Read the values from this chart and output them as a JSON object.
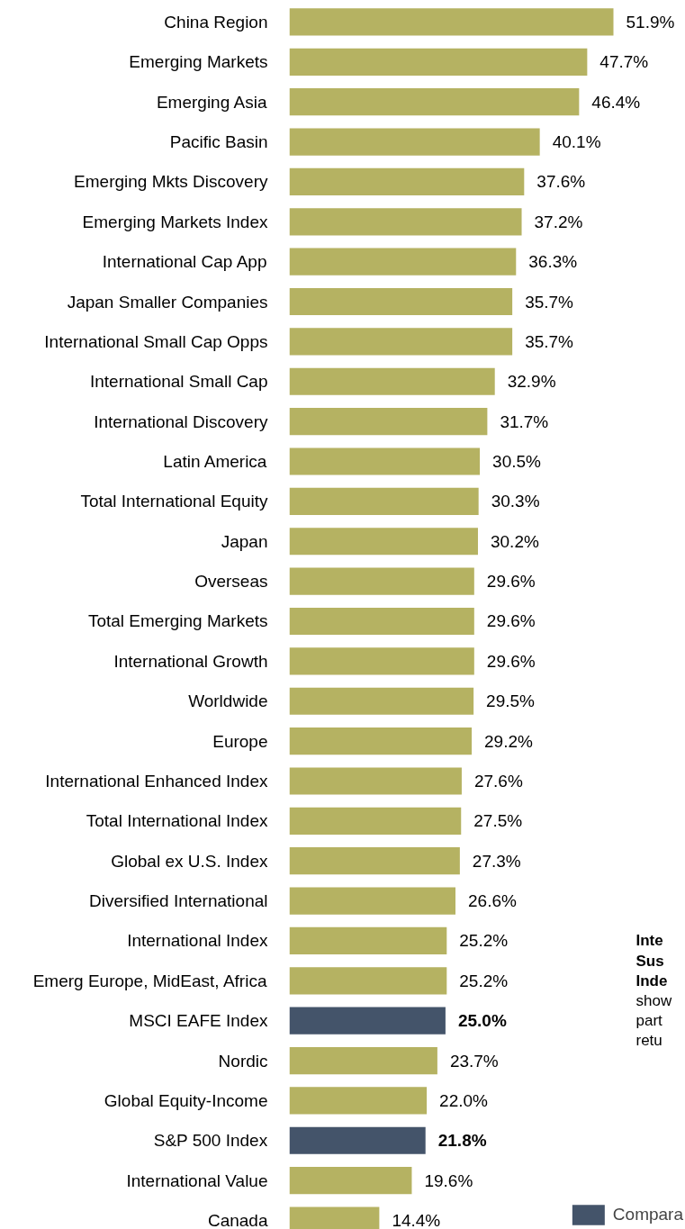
{
  "chart_data": {
    "type": "bar",
    "orientation": "horizontal",
    "categories": [
      "China Region",
      "Emerging Markets",
      "Emerging Asia",
      "Pacific Basin",
      "Emerging Mkts Discovery",
      "Emerging Markets Index",
      "International Cap App",
      "Japan Smaller Companies",
      "International Small Cap Opps",
      "International Small Cap",
      "International Discovery",
      "Latin America",
      "Total International Equity",
      "Japan",
      "Overseas",
      "Total Emerging Markets",
      "International Growth",
      "Worldwide",
      "Europe",
      "International Enhanced Index",
      "Total International Index",
      "Global ex U.S. Index",
      "Diversified International",
      "International Index",
      "Emerg Europe, MidEast, Africa",
      "MSCI EAFE Index",
      "Nordic",
      "Global Equity-Income",
      "S&P 500 Index",
      "International Value",
      "Canada"
    ],
    "series": [
      {
        "color": "#b5b262",
        "values": [
          51.9,
          47.7,
          46.4,
          40.1,
          37.6,
          37.2,
          36.3,
          35.7,
          35.7,
          32.9,
          31.7,
          30.5,
          30.3,
          30.2,
          29.6,
          29.6,
          29.6,
          29.5,
          29.2,
          27.6,
          27.5,
          27.3,
          26.6,
          25.2,
          25.2,
          null,
          23.7,
          22.0,
          null,
          19.6,
          14.4
        ],
        "value_labels": [
          "51.9%",
          "47.7%",
          "46.4%",
          "40.1%",
          "37.6%",
          "37.2%",
          "36.3%",
          "35.7%",
          "35.7%",
          "32.9%",
          "31.7%",
          "30.5%",
          "30.3%",
          "30.2%",
          "29.6%",
          "29.6%",
          "29.6%",
          "29.5%",
          "29.2%",
          "27.6%",
          "27.5%",
          "27.3%",
          "26.6%",
          "25.2%",
          "25.2%",
          null,
          "23.7%",
          "22.0%",
          null,
          "19.6%",
          "14.4%"
        ]
      },
      {
        "name": "Compara",
        "color": "#44546a",
        "values": [
          null,
          null,
          null,
          null,
          null,
          null,
          null,
          null,
          null,
          null,
          null,
          null,
          null,
          null,
          null,
          null,
          null,
          null,
          null,
          null,
          null,
          null,
          null,
          null,
          null,
          25.0,
          null,
          null,
          21.8,
          null,
          null
        ],
        "value_labels": [
          null,
          null,
          null,
          null,
          null,
          null,
          null,
          null,
          null,
          null,
          null,
          null,
          null,
          null,
          null,
          null,
          null,
          null,
          null,
          null,
          null,
          null,
          null,
          null,
          null,
          "25.0%",
          null,
          null,
          "21.8%",
          null,
          null
        ]
      }
    ],
    "legend": "bottom right",
    "grid": false,
    "annotations": [
      "Inte\nSus\nInde",
      "show\npart\nretu"
    ]
  }
}
